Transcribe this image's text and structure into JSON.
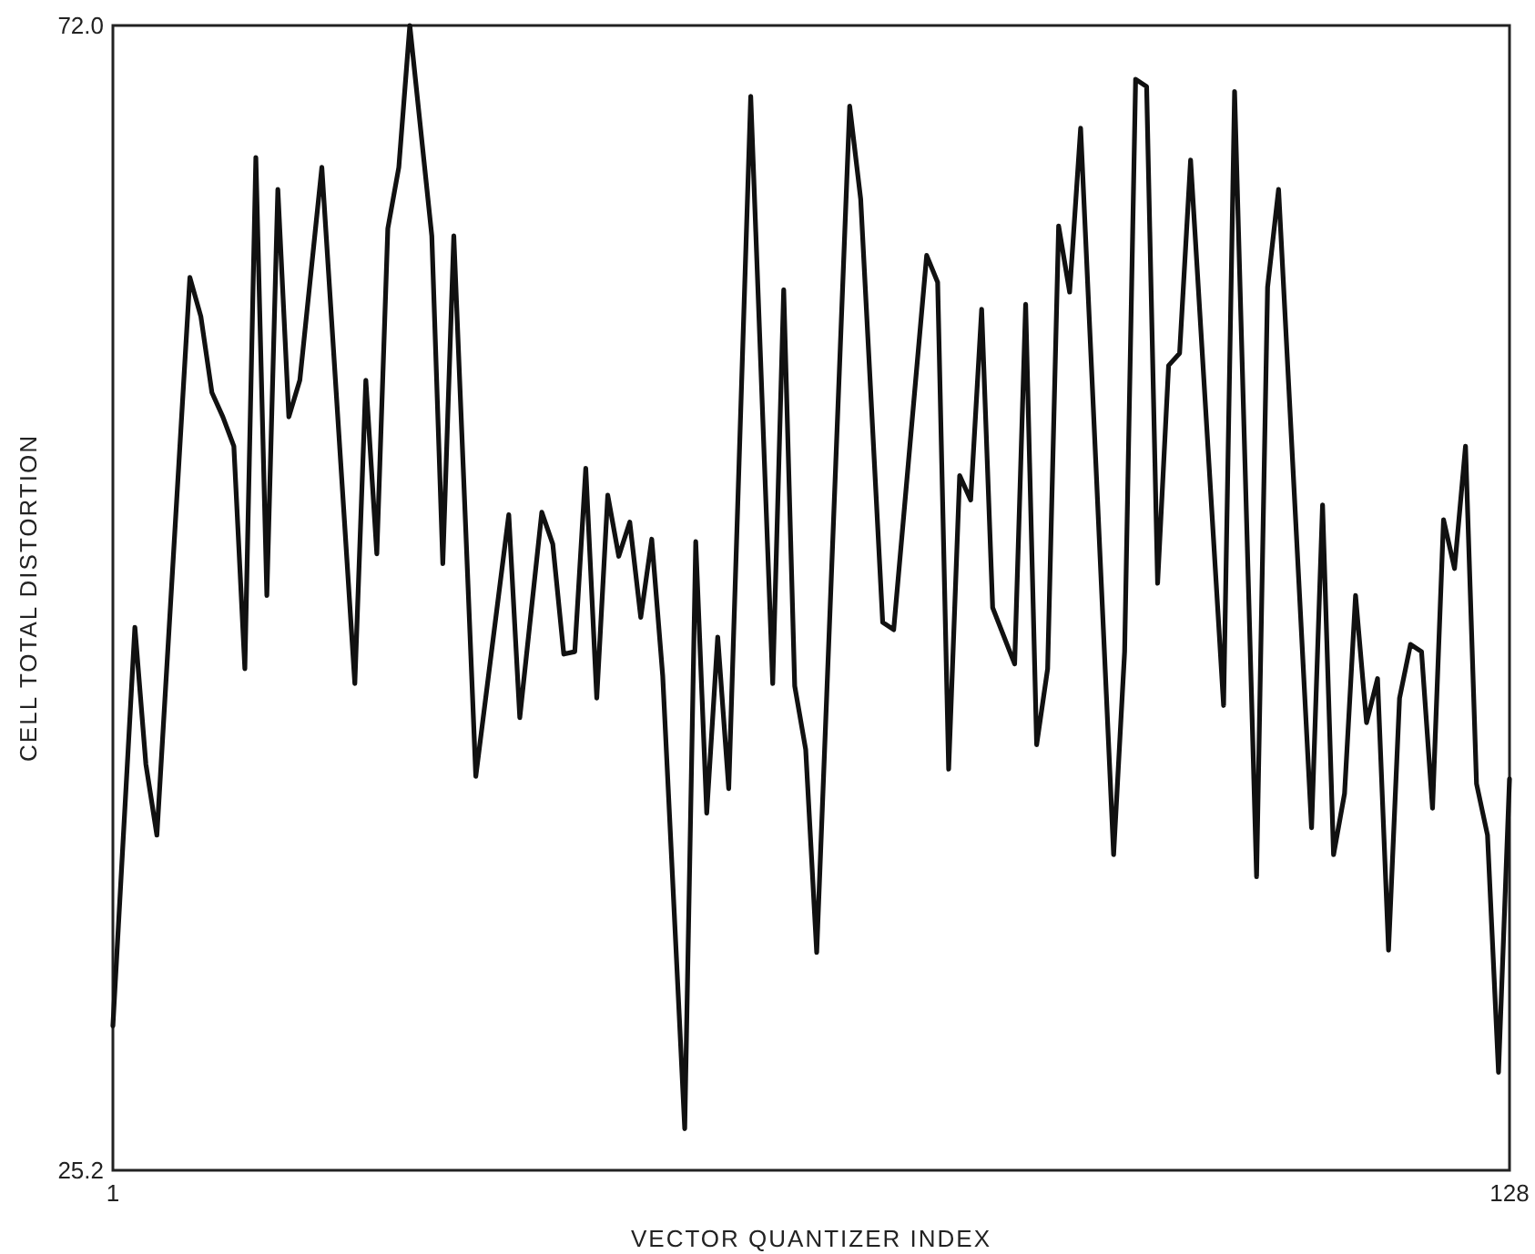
{
  "chart_data": {
    "type": "line",
    "xlabel": "VECTOR QUANTIZER INDEX",
    "ylabel": "CELL TOTAL DISTORTION",
    "xlim": [
      1,
      128
    ],
    "xticks": [
      1,
      128
    ],
    "ylim": [
      25.2,
      72
    ],
    "yticks": [
      25.2,
      {
        "value": 72,
        "label": "72.0"
      }
    ],
    "line_style": "solid",
    "series": [
      {
        "color": "#111111",
        "x": [
          1,
          3,
          4,
          5,
          8,
          9,
          10,
          11,
          12,
          13,
          14,
          15,
          16,
          17,
          18,
          20,
          23,
          24,
          25,
          26,
          27,
          28,
          30,
          31,
          32,
          34,
          37,
          38,
          40,
          41,
          42,
          43,
          44,
          45,
          46,
          47,
          48,
          49,
          50,
          51,
          53,
          54,
          55,
          56,
          57,
          59,
          61,
          62,
          63,
          64,
          65,
          68,
          69,
          71,
          72,
          75,
          76,
          77,
          78,
          79,
          80,
          81,
          83,
          84,
          85,
          86,
          87,
          88,
          89,
          92,
          93,
          94,
          95,
          96,
          97,
          98,
          99,
          102,
          103,
          105,
          106,
          107,
          110,
          111,
          112,
          113,
          114,
          115,
          116,
          117,
          118,
          119,
          120,
          121,
          122,
          123,
          124,
          125,
          126,
          127,
          128
        ],
        "values": [
          31.1,
          47.4,
          41.8,
          38.9,
          61.7,
          60.1,
          57.0,
          56.0,
          54.8,
          45.7,
          66.6,
          48.7,
          65.3,
          56.0,
          57.5,
          66.2,
          45.1,
          57.5,
          50.4,
          63.7,
          66.2,
          72.0,
          63.4,
          50.0,
          63.4,
          41.3,
          52.0,
          43.7,
          52.1,
          50.8,
          46.3,
          46.4,
          53.9,
          44.5,
          52.8,
          50.3,
          51.7,
          47.8,
          51.0,
          45.4,
          26.9,
          50.9,
          39.8,
          47.0,
          40.8,
          69.1,
          45.1,
          61.2,
          45.0,
          42.4,
          34.1,
          68.7,
          64.9,
          47.6,
          47.3,
          62.6,
          61.5,
          41.6,
          53.6,
          52.6,
          60.4,
          48.2,
          45.9,
          60.6,
          42.6,
          45.7,
          63.8,
          61.1,
          67.8,
          38.1,
          46.4,
          69.8,
          69.5,
          49.2,
          58.1,
          58.6,
          66.5,
          44.2,
          69.3,
          37.2,
          61.3,
          65.3,
          39.2,
          52.4,
          38.1,
          40.6,
          48.7,
          43.5,
          45.3,
          34.2,
          44.5,
          46.7,
          46.4,
          40.0,
          51.8,
          49.8,
          54.8,
          41.0,
          38.9,
          29.2,
          41.2
        ]
      }
    ]
  }
}
